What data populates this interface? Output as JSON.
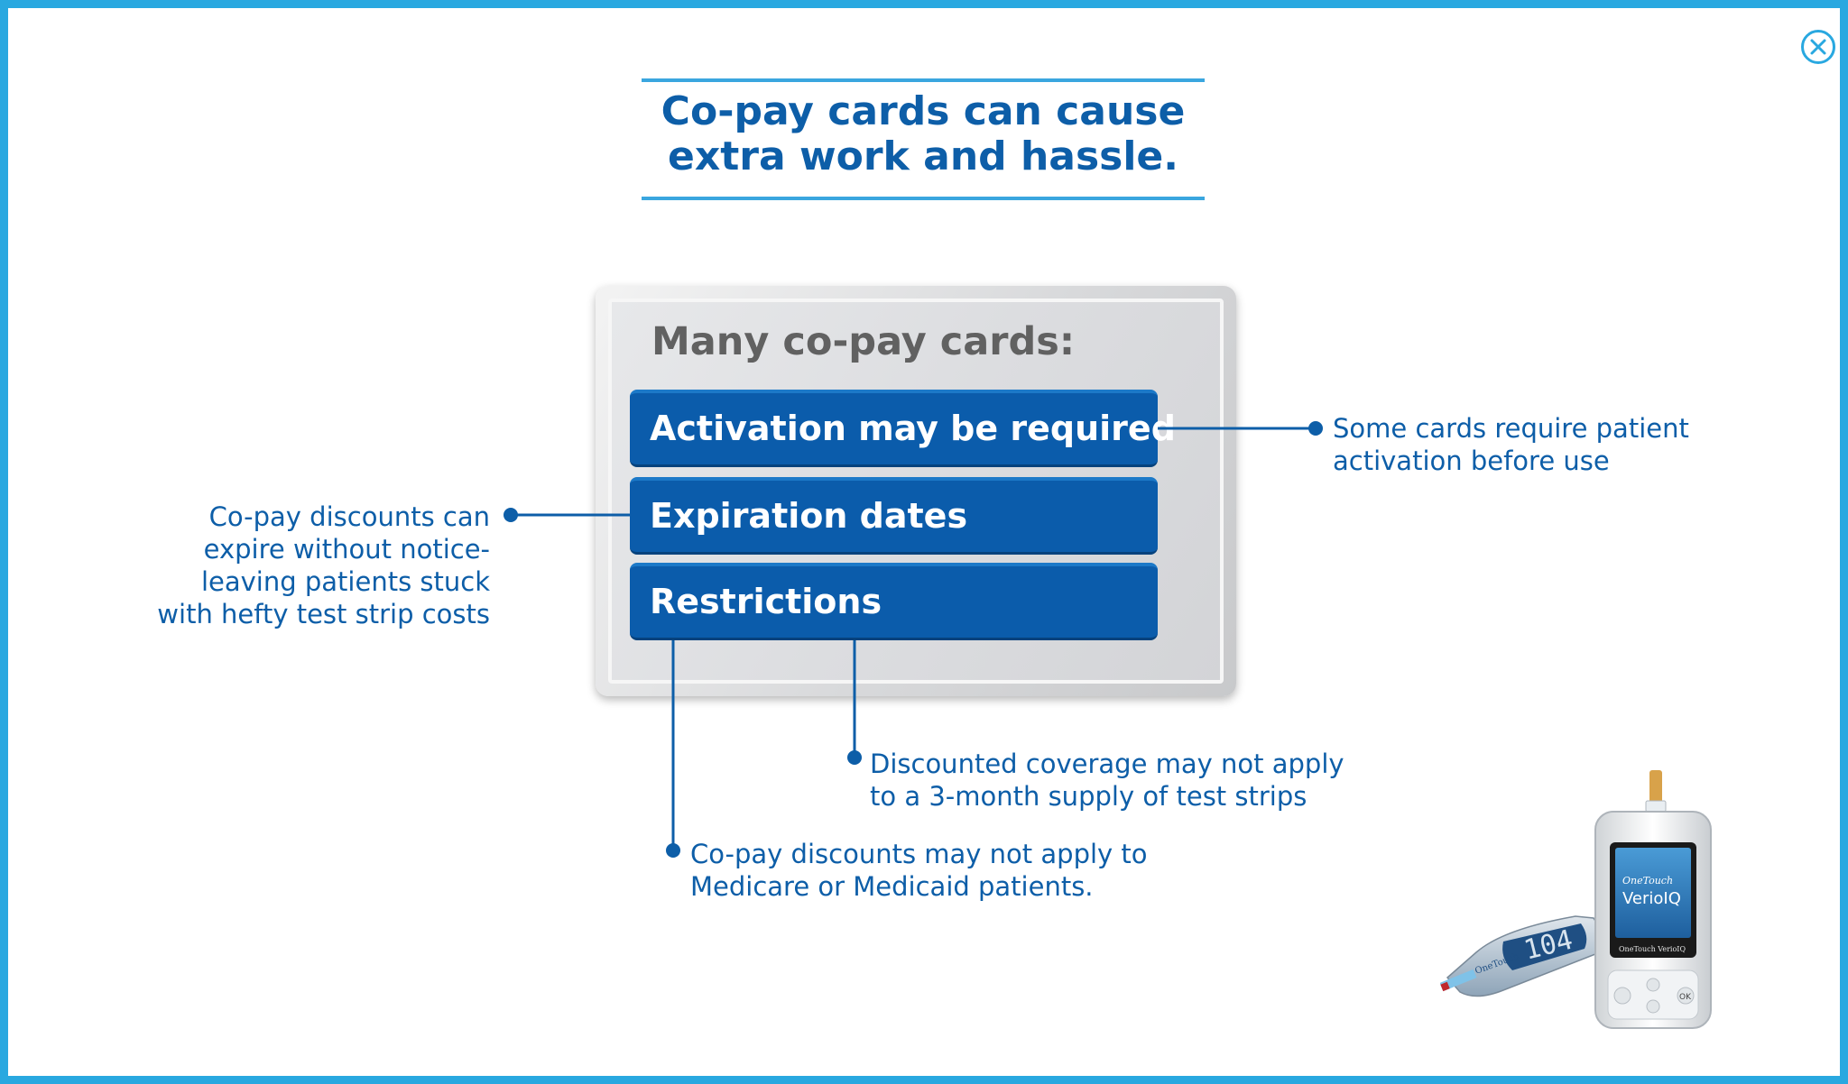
{
  "header": {
    "title_line1": "Co-pay cards can cause",
    "title_line2": "extra work and hassle."
  },
  "card": {
    "heading": "Many co-pay cards:",
    "items": [
      {
        "label": "Activation may be required"
      },
      {
        "label": "Expiration dates"
      },
      {
        "label": "Restrictions"
      }
    ]
  },
  "callouts": {
    "activation": [
      "Some cards require patient",
      "activation before use"
    ],
    "expiration": [
      "Co-pay discounts can",
      "expire without notice-",
      "leaving patients stuck",
      "with hefty test strip costs"
    ],
    "restrictions_supply": [
      "Discounted coverage may not apply",
      "to a 3-month supply of test strips"
    ],
    "restrictions_medicare": [
      "Co-pay discounts may not apply to",
      "Medicare or Medicaid patients."
    ]
  },
  "devices": {
    "meter_brand": "OneTouch",
    "meter_model": "VerioIQ",
    "meter_footer": "OneTouch VerioIQ",
    "meter_ok": "OK",
    "left_reading": "104",
    "left_brand": "OneTouch"
  },
  "colors": {
    "frame": "#29a8e0",
    "accent_blue": "#0d5ea8",
    "pill_blue": "#0b5cab",
    "heading_gray": "#616161"
  },
  "icons": {
    "close": "close-icon"
  }
}
